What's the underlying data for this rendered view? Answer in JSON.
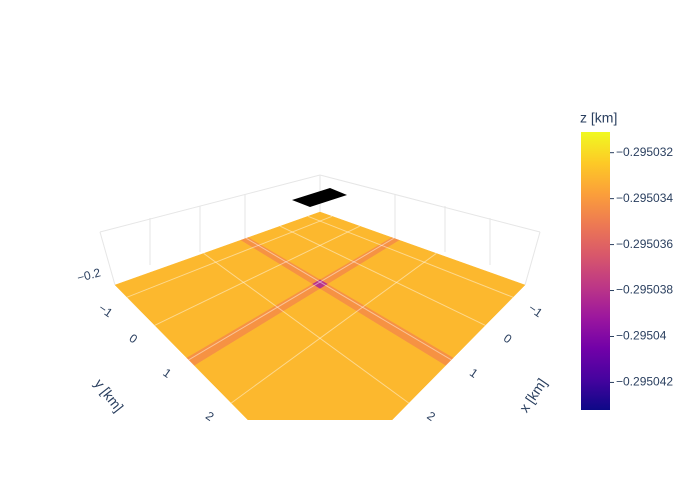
{
  "chart_data": {
    "type": "surface",
    "xlabel": "x [km]",
    "ylabel": "y [km]",
    "colorbar_title": "z [km]",
    "xlim": [
      -1.5,
      3.5
    ],
    "ylim": [
      -1.5,
      3.5
    ],
    "xticks": [
      {
        "value": -1,
        "label": "−1"
      },
      0,
      1,
      2
    ],
    "yticks": [
      {
        "value": -1,
        "label": "−1"
      },
      0,
      1,
      2
    ],
    "zticks": [
      {
        "value": -0.2,
        "label": "−0.2"
      }
    ],
    "x": [
      -1.5,
      0.95,
      1.05,
      1.15,
      3.5
    ],
    "y": [
      -1.5,
      0.95,
      1.05,
      1.15,
      3.5
    ],
    "z": [
      [
        -0.295033,
        -0.295033,
        -0.295033,
        -0.295033,
        -0.295033
      ],
      [
        -0.295033,
        -0.295033,
        -0.295038,
        -0.295033,
        -0.295033
      ],
      [
        -0.295033,
        -0.295038,
        -0.295043,
        -0.295038,
        -0.295033
      ],
      [
        -0.295033,
        -0.295033,
        -0.295038,
        -0.295033,
        -0.295033
      ],
      [
        -0.295033,
        -0.295033,
        -0.295033,
        -0.295033,
        -0.295033
      ]
    ],
    "clim": [
      -0.2950432,
      -0.2950311
    ],
    "colorbar_ticks": [
      {
        "value": -0.295032,
        "label": "−0.295032"
      },
      {
        "value": -0.295034,
        "label": "−0.295034"
      },
      {
        "value": -0.295036,
        "label": "−0.295036"
      },
      {
        "value": -0.295038,
        "label": "−0.295038"
      },
      {
        "value": -0.29504,
        "label": "−0.29504"
      },
      {
        "value": -0.295042,
        "label": "−0.295042"
      }
    ],
    "colorscale": [
      "#0d0887",
      "#46039f",
      "#7201a8",
      "#9c179e",
      "#bd3786",
      "#d8576b",
      "#ed7953",
      "#fb9f3a",
      "#fdca26",
      "#f0f921"
    ],
    "grid": true
  }
}
